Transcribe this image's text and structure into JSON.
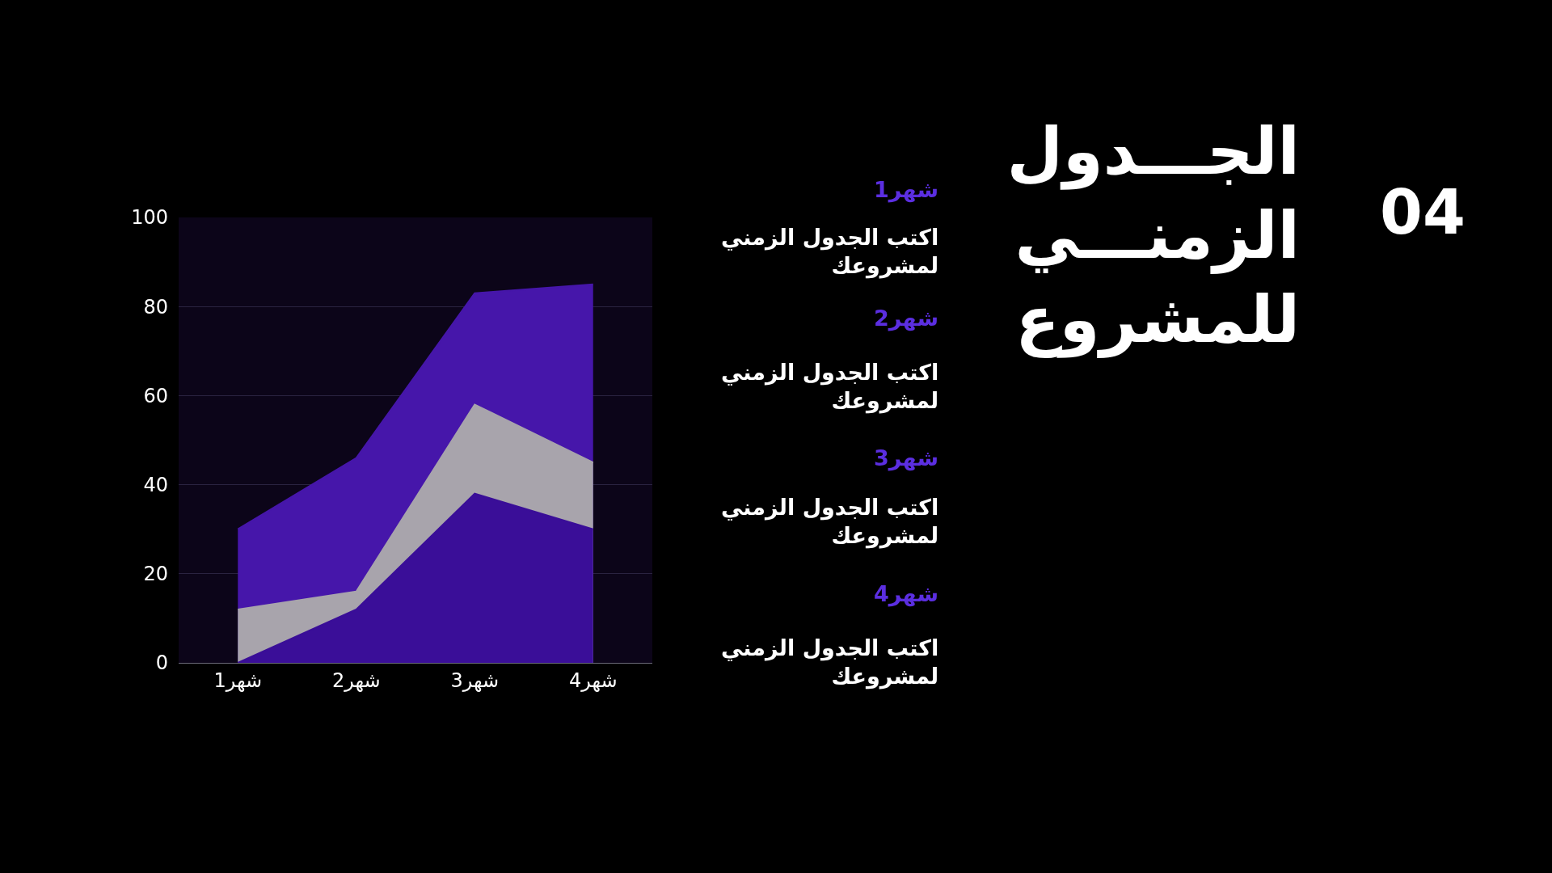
{
  "chart_data": {
    "type": "area",
    "title": "الجـــدول\nالزمنـــي\nللمشروع",
    "categories": [
      "شهر1",
      "شهر2",
      "شهر3",
      "شهر4"
    ],
    "series": [
      {
        "color": "#4616aa",
        "values": [
          30,
          46,
          83,
          85
        ]
      },
      {
        "color": "#a8a4ac",
        "values": [
          12,
          16,
          58,
          45
        ]
      },
      {
        "color": "#3a0e98",
        "values": [
          0,
          12,
          38,
          30
        ]
      }
    ],
    "ylim": [
      0,
      100
    ],
    "yticks": [
      0,
      20,
      40,
      60,
      80,
      100
    ],
    "grid": "y",
    "annotations": [
      "04",
      "شهر1",
      "اكتب الجدول الزمني\nلمشروعك",
      "شهر2",
      "اكتب الجدول الزمني\nلمشروعك",
      "شهر3",
      "اكتب الجدول الزمني\nلمشروعك",
      "شهر4",
      "اكتب الجدول الزمني\nلمشروعك"
    ]
  }
}
